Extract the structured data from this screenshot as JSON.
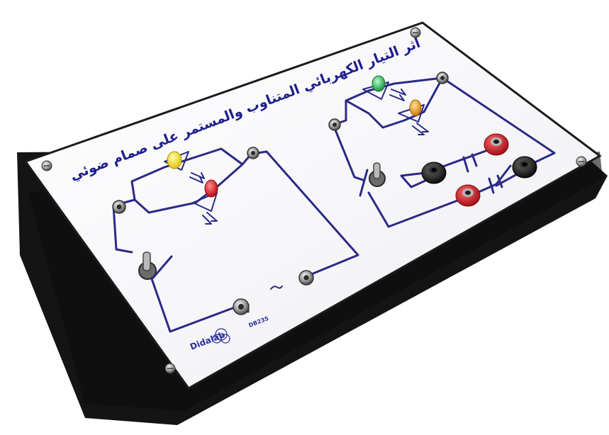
{
  "board": {
    "title": "أثر التيار الكهربائي المتناوب والمستمر على صمام ضوئي",
    "brand": "Didalab",
    "model": "DB235"
  },
  "colors": {
    "case": "#141414",
    "panel": "#fbfbfd",
    "wire": "#2b2a86",
    "text": "#1d1f8c",
    "led_yellow": "#f2e21a",
    "led_red": "#e0202a",
    "led_green": "#2ec45a",
    "led_orange": "#f0a21a",
    "jack_red": "#d81e28",
    "jack_black": "#1a1a1a"
  }
}
